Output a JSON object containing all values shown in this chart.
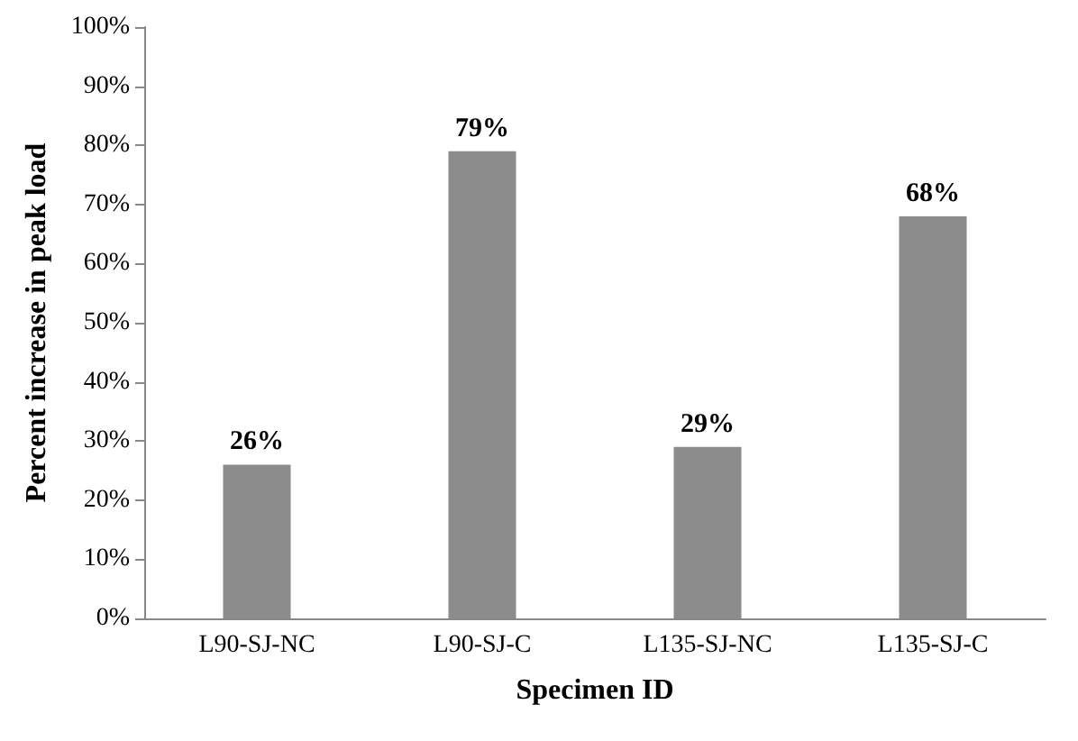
{
  "chart_data": {
    "type": "bar",
    "xlabel": "Specimen ID",
    "ylabel": "Percent increase in peak load",
    "categories": [
      "L90-SJ-NC",
      "L90-SJ-C",
      "L135-SJ-NC",
      "L135-SJ-C"
    ],
    "values": [
      26,
      79,
      29,
      68
    ],
    "color": "#8c8c8c",
    "value_labels": [
      "26%",
      "79%",
      "29%",
      "68%"
    ],
    "ylim": [
      0,
      100
    ],
    "yticks": [
      {
        "value": 0,
        "label": "0%"
      },
      {
        "value": 10,
        "label": "10%"
      },
      {
        "value": 20,
        "label": "20%"
      },
      {
        "value": 30,
        "label": "30%"
      },
      {
        "value": 40,
        "label": "40%"
      },
      {
        "value": 50,
        "label": "50%"
      },
      {
        "value": 60,
        "label": "60%"
      },
      {
        "value": 70,
        "label": "70%"
      },
      {
        "value": 80,
        "label": "80%"
      },
      {
        "value": 90,
        "label": "90%"
      },
      {
        "value": 100,
        "label": "100%"
      }
    ],
    "grid": false
  }
}
